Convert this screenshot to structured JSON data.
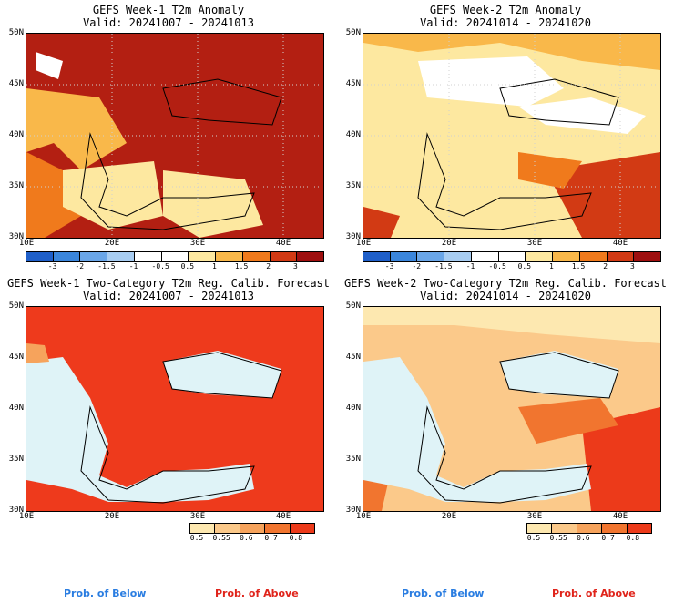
{
  "panels": [
    {
      "title": "GEFS Week-1 T2m Anomaly",
      "valid": "Valid: 20241007 - 20241013",
      "kind": "anomaly",
      "dominant_color": "#b31f12"
    },
    {
      "title": "GEFS Week-2 T2m Anomaly",
      "valid": "Valid: 20241014 - 20241020",
      "kind": "anomaly",
      "dominant_color": "#fde8a0"
    },
    {
      "title": "GEFS Week-1 Two-Category T2m Reg. Calib. Forecast",
      "valid": "Valid: 20241007 - 20241013",
      "kind": "probability",
      "dominant_color": "#ee3a1c"
    },
    {
      "title": "GEFS Week-2 Two-Category T2m Reg. Calib. Forecast",
      "valid": "Valid: 20241014 - 20241020",
      "kind": "probability",
      "dominant_color": "#fbc98a"
    }
  ],
  "axes": {
    "lat_labels": [
      "50N",
      "45N",
      "40N",
      "35N",
      "30N"
    ],
    "lon_labels": [
      "10E",
      "20E",
      "30E",
      "40E"
    ]
  },
  "anomaly_colorbar": {
    "ticks": [
      "-3",
      "-2",
      "-1.5",
      "-1",
      "-0.5",
      "0.5",
      "1",
      "1.5",
      "2",
      "3"
    ],
    "colors": [
      "#1f5fc9",
      "#3b86dc",
      "#6aa6e8",
      "#a8cdf2",
      "#ffffff",
      "#ffffff",
      "#fde8a0",
      "#f9b84a",
      "#f07a1c",
      "#d23a14",
      "#9e0f0f"
    ]
  },
  "prob_colorbar": {
    "ticks": [
      "0.5",
      "0.55",
      "0.6",
      "0.7",
      "0.8"
    ],
    "colors": [
      "#fde8b0",
      "#fbc98a",
      "#f6a35c",
      "#f1752f",
      "#ec3a1a"
    ]
  },
  "legend": {
    "below": "Prob. of Below",
    "above": "Prob. of Above",
    "below_color": "#2a7de1",
    "above_color": "#e0241b"
  },
  "sea_color": "#dff3f7"
}
